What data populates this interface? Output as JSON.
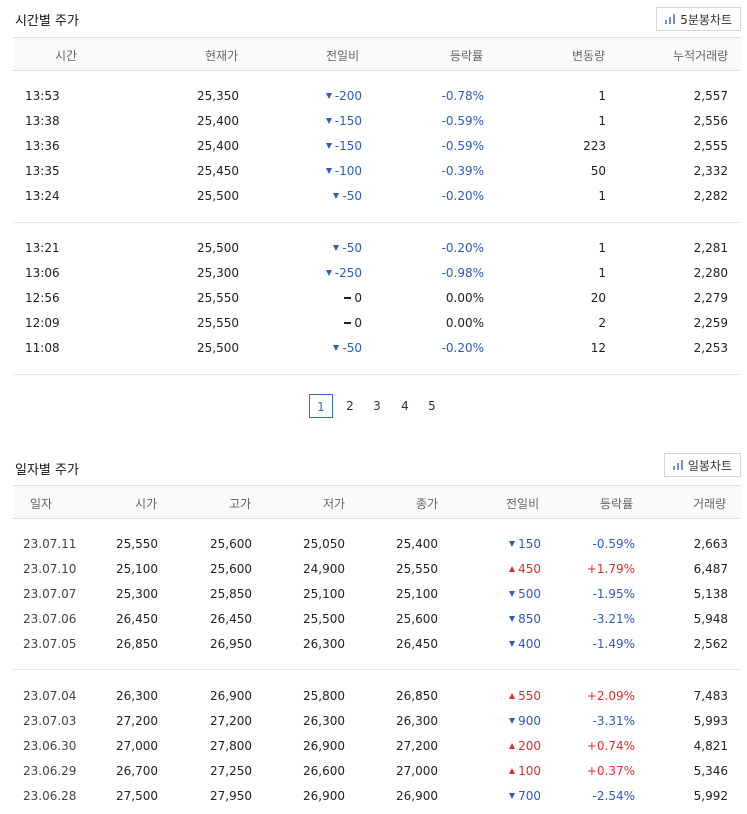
{
  "time_section": {
    "title": "시간별 주가",
    "chart_button": "5분봉차트",
    "columns": [
      "시간",
      "현재가",
      "전일비",
      "등락률",
      "변동량",
      "누적거래량"
    ],
    "group1": [
      {
        "time": "13:53",
        "price": "25,350",
        "dir": "down",
        "diff": "-200",
        "rate": "-0.78%",
        "vol": "1",
        "cum": "2,557"
      },
      {
        "time": "13:38",
        "price": "25,400",
        "dir": "down",
        "diff": "-150",
        "rate": "-0.59%",
        "vol": "1",
        "cum": "2,556"
      },
      {
        "time": "13:36",
        "price": "25,400",
        "dir": "down",
        "diff": "-150",
        "rate": "-0.59%",
        "vol": "223",
        "cum": "2,555"
      },
      {
        "time": "13:35",
        "price": "25,450",
        "dir": "down",
        "diff": "-100",
        "rate": "-0.39%",
        "vol": "50",
        "cum": "2,332"
      },
      {
        "time": "13:24",
        "price": "25,500",
        "dir": "down",
        "diff": "-50",
        "rate": "-0.20%",
        "vol": "1",
        "cum": "2,282"
      }
    ],
    "group2": [
      {
        "time": "13:21",
        "price": "25,500",
        "dir": "down",
        "diff": "-50",
        "rate": "-0.20%",
        "vol": "1",
        "cum": "2,281"
      },
      {
        "time": "13:06",
        "price": "25,300",
        "dir": "down",
        "diff": "-250",
        "rate": "-0.98%",
        "vol": "1",
        "cum": "2,280"
      },
      {
        "time": "12:56",
        "price": "25,550",
        "dir": "flat",
        "diff": "0",
        "rate": "0.00%",
        "vol": "20",
        "cum": "2,279"
      },
      {
        "time": "12:09",
        "price": "25,550",
        "dir": "flat",
        "diff": "0",
        "rate": "0.00%",
        "vol": "2",
        "cum": "2,259"
      },
      {
        "time": "11:08",
        "price": "25,500",
        "dir": "down",
        "diff": "-50",
        "rate": "-0.20%",
        "vol": "12",
        "cum": "2,253"
      }
    ]
  },
  "pagination": {
    "pages": [
      "1",
      "2",
      "3",
      "4",
      "5"
    ],
    "active": "1"
  },
  "daily_section": {
    "title": "일자별 주가",
    "chart_button": "일봉차트",
    "columns": [
      "일자",
      "시가",
      "고가",
      "저가",
      "종가",
      "전일비",
      "등락률",
      "거래량"
    ],
    "group1": [
      {
        "date": "23.07.11",
        "open": "25,550",
        "high": "25,600",
        "low": "25,050",
        "close": "25,400",
        "dir": "down",
        "diff": "150",
        "rate": "-0.59%",
        "vol": "2,663"
      },
      {
        "date": "23.07.10",
        "open": "25,100",
        "high": "25,600",
        "low": "24,900",
        "close": "25,550",
        "dir": "up",
        "diff": "450",
        "rate": "+1.79%",
        "vol": "6,487"
      },
      {
        "date": "23.07.07",
        "open": "25,300",
        "high": "25,850",
        "low": "25,100",
        "close": "25,100",
        "dir": "down",
        "diff": "500",
        "rate": "-1.95%",
        "vol": "5,138"
      },
      {
        "date": "23.07.06",
        "open": "26,450",
        "high": "26,450",
        "low": "25,500",
        "close": "25,600",
        "dir": "down",
        "diff": "850",
        "rate": "-3.21%",
        "vol": "5,948"
      },
      {
        "date": "23.07.05",
        "open": "26,850",
        "high": "26,950",
        "low": "26,300",
        "close": "26,450",
        "dir": "down",
        "diff": "400",
        "rate": "-1.49%",
        "vol": "2,562"
      }
    ],
    "group2": [
      {
        "date": "23.07.04",
        "open": "26,300",
        "high": "26,900",
        "low": "25,800",
        "close": "26,850",
        "dir": "up",
        "diff": "550",
        "rate": "+2.09%",
        "vol": "7,483"
      },
      {
        "date": "23.07.03",
        "open": "27,200",
        "high": "27,200",
        "low": "26,300",
        "close": "26,300",
        "dir": "down",
        "diff": "900",
        "rate": "-3.31%",
        "vol": "5,993"
      },
      {
        "date": "23.06.30",
        "open": "27,000",
        "high": "27,800",
        "low": "26,900",
        "close": "27,200",
        "dir": "up",
        "diff": "200",
        "rate": "+0.74%",
        "vol": "4,821"
      },
      {
        "date": "23.06.29",
        "open": "26,700",
        "high": "27,250",
        "low": "26,600",
        "close": "27,000",
        "dir": "up",
        "diff": "100",
        "rate": "+0.37%",
        "vol": "5,346"
      },
      {
        "date": "23.06.28",
        "open": "27,500",
        "high": "27,950",
        "low": "26,900",
        "close": "26,900",
        "dir": "down",
        "diff": "700",
        "rate": "-2.54%",
        "vol": "5,992"
      }
    ]
  },
  "icons": {
    "chart_button": "bar-chart-icon",
    "down": "triangle-down-icon",
    "up": "triangle-up-icon",
    "flat": "dash-icon"
  },
  "colors": {
    "down": "#2d5ac6",
    "up": "#e22c2c",
    "active_page": "#2d6ed6"
  }
}
